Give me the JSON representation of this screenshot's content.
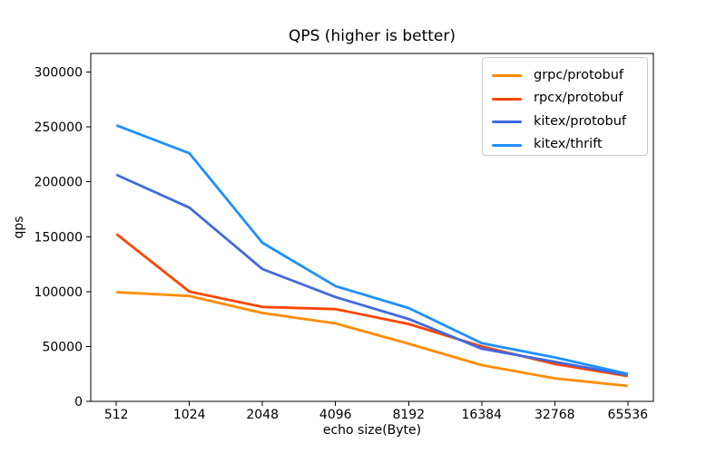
{
  "chart_data": {
    "type": "line",
    "title": "QPS (higher is better)",
    "xlabel": "echo size(Byte)",
    "ylabel": "qps",
    "categories": [
      "512",
      "1024",
      "2048",
      "4096",
      "8192",
      "16384",
      "32768",
      "65536"
    ],
    "yticks": [
      0,
      50000,
      100000,
      150000,
      200000,
      250000,
      300000
    ],
    "ylim": [
      0,
      317000
    ],
    "grid": false,
    "legend_position": "upper right",
    "axis_color": "#000000",
    "legend_border_color": "#cccccc",
    "series": [
      {
        "name": "grpc/protobuf",
        "color": "#ff8c00",
        "values": [
          99500,
          96000,
          80500,
          71000,
          52500,
          33000,
          21000,
          14000
        ]
      },
      {
        "name": "rpcx/protobuf",
        "color": "#ff4500",
        "values": [
          152500,
          100000,
          86000,
          84000,
          70500,
          50000,
          34000,
          23000
        ]
      },
      {
        "name": "kitex/protobuf",
        "color": "#4169e1",
        "values": [
          206500,
          176500,
          120500,
          95000,
          75000,
          48000,
          36000,
          24000
        ]
      },
      {
        "name": "kitex/thrift",
        "color": "#1e90ff",
        "values": [
          251500,
          226000,
          144500,
          105000,
          85000,
          53000,
          40000,
          25000
        ]
      }
    ]
  }
}
